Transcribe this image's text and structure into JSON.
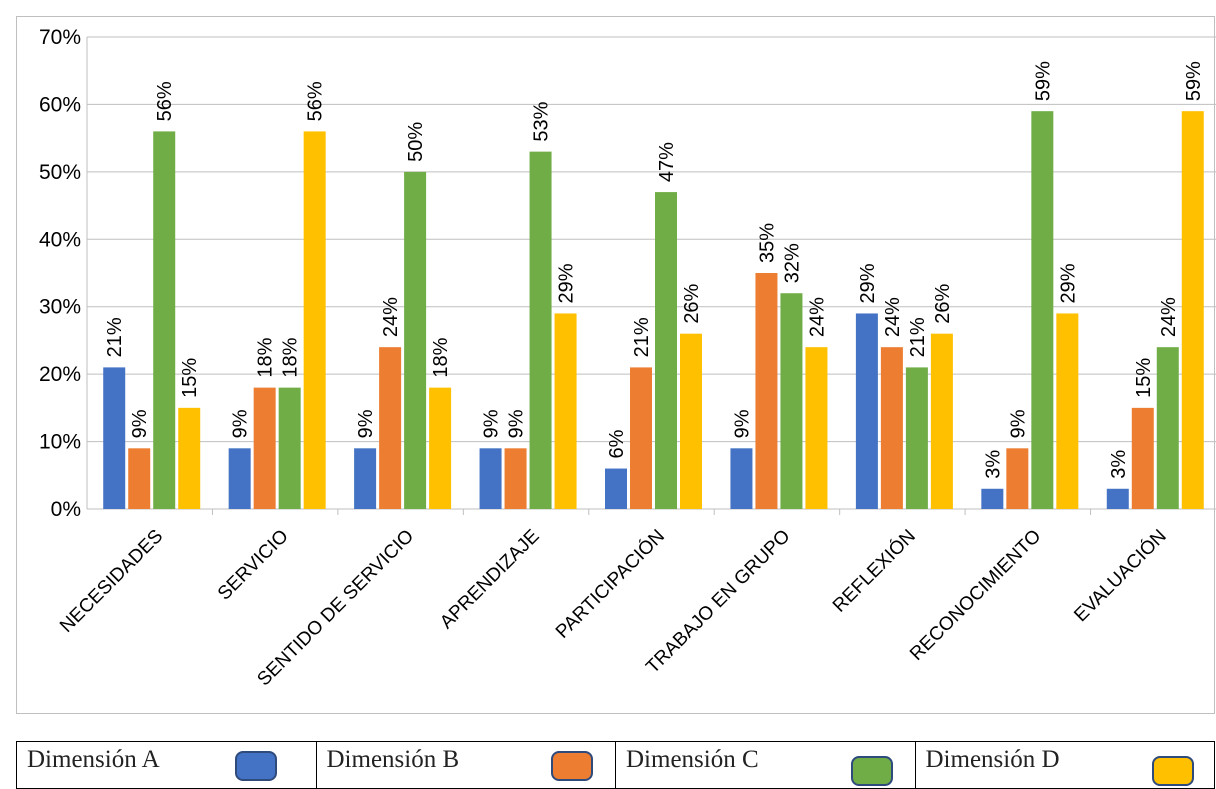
{
  "chart_data": {
    "type": "bar",
    "categories": [
      "NECESIDADES",
      "SERVICIO",
      "SENTIDO DE SERVICIO",
      "APRENDIZAJE",
      "PARTICIPACIÓN",
      "TRABAJO EN GRUPO",
      "REFLEXIÓN",
      "RECONOCIMIENTO",
      "EVALUACIÓN"
    ],
    "series": [
      {
        "name": "Dimensión A",
        "color": "#4472c4",
        "values": [
          21,
          9,
          9,
          9,
          6,
          9,
          29,
          3,
          3
        ]
      },
      {
        "name": "Dimensión B",
        "color": "#ed7d31",
        "values": [
          9,
          18,
          24,
          9,
          21,
          35,
          24,
          9,
          15
        ]
      },
      {
        "name": "Dimensión C",
        "color": "#70ad47",
        "values": [
          56,
          18,
          50,
          53,
          47,
          32,
          21,
          59,
          24
        ]
      },
      {
        "name": "Dimensión D",
        "color": "#ffc000",
        "values": [
          15,
          56,
          18,
          29,
          26,
          24,
          26,
          29,
          59
        ]
      }
    ],
    "y_ticks": [
      "0%",
      "10%",
      "20%",
      "30%",
      "40%",
      "50%",
      "60%",
      "70%"
    ],
    "ylim": [
      0,
      70
    ],
    "value_suffix": "%",
    "grid": true,
    "legend_placement": "bottom"
  },
  "legend": {
    "items": [
      {
        "label": "Dimensión A",
        "color": "#4472c4"
      },
      {
        "label": "Dimensión B",
        "color": "#ed7d31"
      },
      {
        "label": "Dimensión C",
        "color": "#70ad47"
      },
      {
        "label": "Dimensión D",
        "color": "#ffc000"
      }
    ]
  }
}
